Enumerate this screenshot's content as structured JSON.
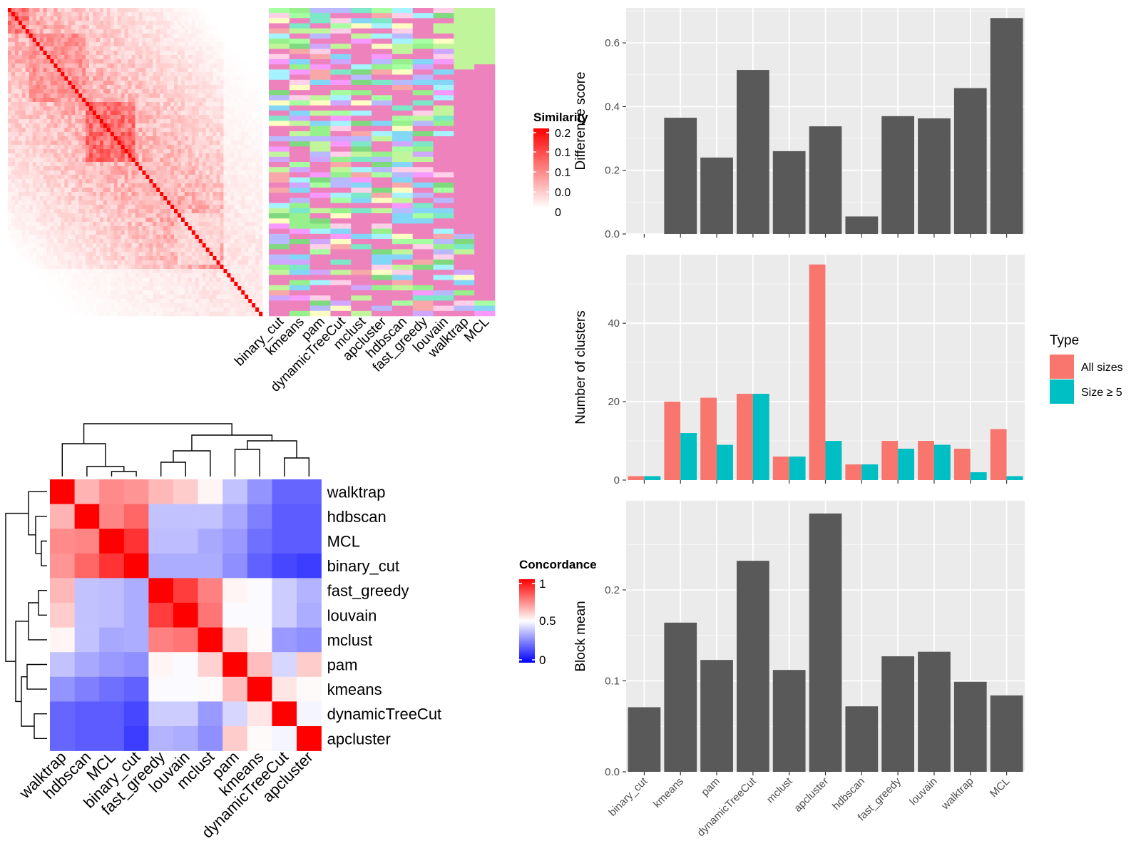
{
  "colors": {
    "panel_bg": "#ebebeb",
    "grid": "#ffffff",
    "bar_dark": "#595959",
    "all_sizes": "#f8766d",
    "size_ge5": "#00bfc4",
    "sim_high": "#ff0000",
    "conc_low": "#0000ff",
    "conc_mid": "#ffffff",
    "conc_high": "#ff0000"
  },
  "methods_cols": [
    "binary_cut",
    "kmeans",
    "pam",
    "dynamicTreeCut",
    "mclust",
    "apcluster",
    "hdbscan",
    "fast_greedy",
    "louvain",
    "walktrap",
    "MCL"
  ],
  "similarity_legend": {
    "title": "Similarity",
    "ticks": [
      "0.2",
      "0.1",
      "0.1",
      "0.0",
      "0"
    ]
  },
  "concordance_heatmap": {
    "legend_title": "Concordance",
    "legend_ticks": [
      "1",
      "0.5",
      "0"
    ],
    "order": [
      "walktrap",
      "hdbscan",
      "MCL",
      "binary_cut",
      "fast_greedy",
      "louvain",
      "mclust",
      "pam",
      "kmeans",
      "dynamicTreeCut",
      "apcluster"
    ],
    "matrix": [
      [
        1.0,
        0.65,
        0.73,
        0.71,
        0.64,
        0.6,
        0.52,
        0.38,
        0.29,
        0.2,
        0.2
      ],
      [
        0.65,
        1.0,
        0.74,
        0.8,
        0.38,
        0.38,
        0.38,
        0.33,
        0.25,
        0.18,
        0.18
      ],
      [
        0.73,
        0.74,
        1.0,
        0.9,
        0.37,
        0.37,
        0.33,
        0.3,
        0.22,
        0.18,
        0.18
      ],
      [
        0.71,
        0.8,
        0.9,
        1.0,
        0.34,
        0.34,
        0.34,
        0.28,
        0.19,
        0.14,
        0.12
      ],
      [
        0.64,
        0.38,
        0.37,
        0.34,
        1.0,
        0.88,
        0.75,
        0.52,
        0.49,
        0.4,
        0.35
      ],
      [
        0.6,
        0.38,
        0.37,
        0.34,
        0.88,
        1.0,
        0.77,
        0.49,
        0.49,
        0.4,
        0.34
      ],
      [
        0.52,
        0.38,
        0.33,
        0.34,
        0.75,
        0.77,
        1.0,
        0.59,
        0.51,
        0.3,
        0.28
      ],
      [
        0.38,
        0.33,
        0.3,
        0.28,
        0.52,
        0.49,
        0.59,
        1.0,
        0.63,
        0.42,
        0.6
      ],
      [
        0.29,
        0.25,
        0.22,
        0.19,
        0.49,
        0.49,
        0.51,
        0.63,
        1.0,
        0.55,
        0.51
      ],
      [
        0.2,
        0.18,
        0.18,
        0.14,
        0.4,
        0.4,
        0.3,
        0.42,
        0.55,
        1.0,
        0.48
      ],
      [
        0.2,
        0.18,
        0.18,
        0.12,
        0.35,
        0.34,
        0.28,
        0.6,
        0.51,
        0.48,
        1.0
      ]
    ]
  },
  "chart_data": [
    {
      "type": "bar",
      "ylabel": "Difference score",
      "categories": [
        "binary_cut",
        "kmeans",
        "pam",
        "dynamicTreeCut",
        "mclust",
        "apcluster",
        "hdbscan",
        "fast_greedy",
        "louvain",
        "walktrap",
        "MCL"
      ],
      "values": [
        0.0,
        0.365,
        0.24,
        0.515,
        0.26,
        0.338,
        0.055,
        0.37,
        0.363,
        0.458,
        0.678
      ],
      "ylim": [
        0,
        0.71
      ],
      "yticks": [
        0.0,
        0.2,
        0.4,
        0.6
      ],
      "ytick_labels": [
        "0.0",
        "0.2",
        "0.4",
        "0.6"
      ]
    },
    {
      "type": "bar",
      "ylabel": "Number of clusters",
      "categories": [
        "binary_cut",
        "kmeans",
        "pam",
        "dynamicTreeCut",
        "mclust",
        "apcluster",
        "hdbscan",
        "fast_greedy",
        "louvain",
        "walktrap",
        "MCL"
      ],
      "series": [
        {
          "name": "All sizes",
          "values": [
            1,
            20,
            21,
            22,
            6,
            55,
            4,
            10,
            10,
            8,
            13
          ]
        },
        {
          "name": "Size ≥ 5",
          "values": [
            1,
            12,
            9,
            22,
            6,
            10,
            4,
            8,
            9,
            2,
            1
          ]
        }
      ],
      "ylim": [
        0,
        57.5
      ],
      "yticks": [
        0,
        20,
        40
      ],
      "ytick_labels": [
        "0",
        "20",
        "40"
      ],
      "legend": {
        "title": "Type",
        "position": "right"
      }
    },
    {
      "type": "bar",
      "ylabel": "Block mean",
      "categories": [
        "binary_cut",
        "kmeans",
        "pam",
        "dynamicTreeCut",
        "mclust",
        "apcluster",
        "hdbscan",
        "fast_greedy",
        "louvain",
        "walktrap",
        "MCL"
      ],
      "values": [
        0.071,
        0.164,
        0.123,
        0.232,
        0.112,
        0.284,
        0.072,
        0.127,
        0.132,
        0.099,
        0.084
      ],
      "ylim": [
        0,
        0.298
      ],
      "yticks": [
        0.0,
        0.1,
        0.2
      ],
      "ytick_labels": [
        "0.0",
        "0.1",
        "0.2"
      ]
    }
  ]
}
